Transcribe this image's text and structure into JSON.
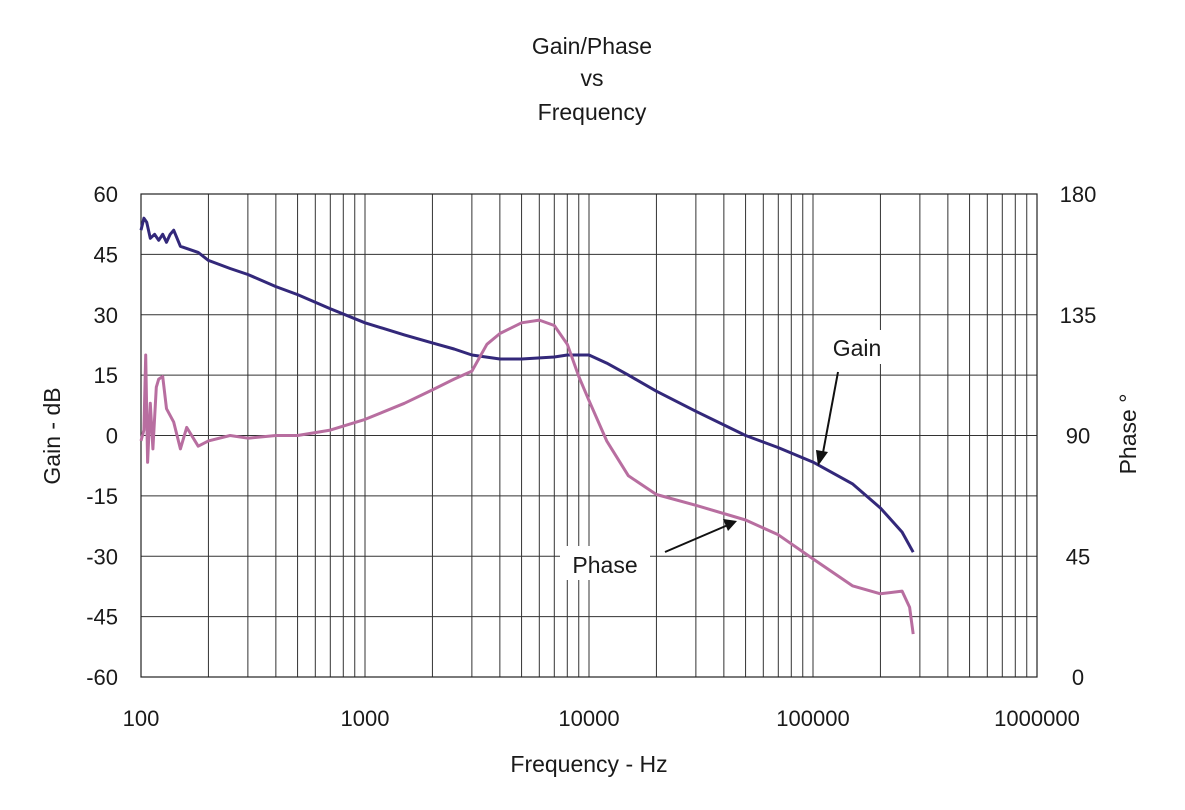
{
  "chart_data": {
    "type": "line",
    "title": [
      "Gain/Phase",
      "vs",
      "Frequency"
    ],
    "xlabel": "Frequency - Hz",
    "ylabel": "Gain - dB",
    "y2label": "Phase °",
    "xscale": "log",
    "xlim": [
      100,
      1000000
    ],
    "ylim": [
      -60,
      60
    ],
    "y2lim": [
      0,
      180
    ],
    "grid": true,
    "xticks": [
      "100",
      "1000",
      "10000",
      "100000",
      "1000000"
    ],
    "yticks": [
      "60",
      "45",
      "30",
      "15",
      "0",
      "-15",
      "-30",
      "-45",
      "-60"
    ],
    "y2ticks": [
      "180",
      "135",
      "90",
      "45",
      "0"
    ],
    "series": [
      {
        "name": "Gain",
        "axis": "left",
        "color": "#33287a",
        "x": [
          100,
          103,
          106,
          110,
          115,
          120,
          125,
          130,
          135,
          140,
          150,
          180,
          200,
          250,
          300,
          400,
          500,
          700,
          1000,
          1500,
          2000,
          2500,
          3000,
          4000,
          5000,
          7000,
          8000,
          10000,
          12000,
          15000,
          20000,
          30000,
          50000,
          70000,
          100000,
          150000,
          200000,
          250000,
          280000
        ],
        "y": [
          51,
          54,
          53,
          49,
          50,
          48.5,
          50,
          48,
          50,
          51,
          47,
          45.5,
          43.5,
          41.5,
          40,
          37,
          35,
          31.5,
          28,
          25,
          23,
          21.5,
          20,
          19,
          19,
          19.5,
          20,
          20,
          18,
          15,
          11,
          6,
          0,
          -3,
          -6.6,
          -12,
          -18,
          -24,
          -29
        ]
      },
      {
        "name": "Phase",
        "axis": "right",
        "color": "#b86ea0",
        "x": [
          100,
          103,
          105,
          107,
          110,
          113,
          117,
          120,
          125,
          130,
          140,
          150,
          160,
          180,
          200,
          250,
          300,
          400,
          500,
          700,
          1000,
          1500,
          2000,
          2500,
          3000,
          3500,
          4000,
          5000,
          6000,
          7000,
          8000,
          9000,
          10000,
          12000,
          15000,
          20000,
          30000,
          50000,
          70000,
          100000,
          150000,
          200000,
          250000,
          270000,
          280000
        ],
        "y": [
          88,
          92,
          120,
          80,
          102,
          85,
          108,
          111,
          112,
          100,
          95,
          85,
          93,
          86,
          88,
          90,
          89,
          90,
          90,
          92,
          96,
          102,
          107,
          111,
          114,
          124,
          128,
          132,
          133,
          131,
          124,
          112,
          103,
          88,
          75,
          68,
          64,
          58.5,
          53,
          44,
          34,
          31,
          32,
          26,
          16
        ]
      }
    ],
    "annotations": [
      {
        "text": "Gain",
        "points_to": "Gain"
      },
      {
        "text": "Phase",
        "points_to": "Phase"
      }
    ]
  }
}
